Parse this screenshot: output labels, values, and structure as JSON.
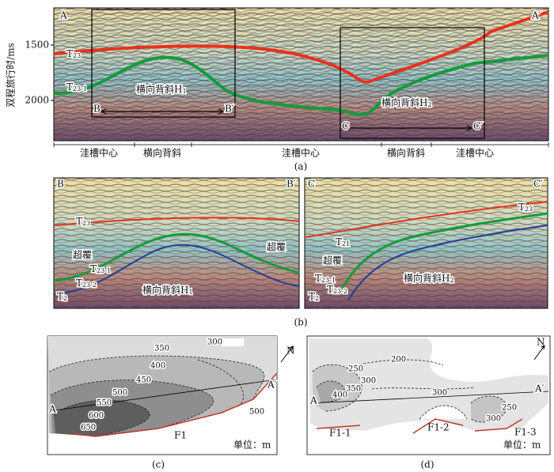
{
  "panel_a": {
    "y_axis_label": "双程旅行时/ms",
    "y_ticks": [
      "1500",
      "2000"
    ],
    "labels": {
      "A": "A",
      "A_prime": "A′",
      "B": "B",
      "B_prime": "B′",
      "C": "C",
      "C_prime": "C′"
    },
    "horizon_t23": {
      "main": "T",
      "sub": "23"
    },
    "horizon_t23_1": {
      "main": "T",
      "sub": "23-1"
    },
    "h1": {
      "main": "横向背斜H",
      "sub": "1"
    },
    "h2": {
      "main": "横向背斜H",
      "sub": "2"
    },
    "segments": [
      "洼槽中心",
      "横向背斜",
      "洼槽中心",
      "横向背斜",
      "洼槽中心"
    ],
    "caption": "(a)"
  },
  "panel_b": {
    "left": {
      "B": "B",
      "B_prime": "B′",
      "t23": {
        "main": "T",
        "sub": "23"
      },
      "onlap_left": "超覆",
      "onlap_right": "超覆",
      "t23_1": {
        "main": "T",
        "sub": "23-1"
      },
      "t23_2": {
        "main": "T",
        "sub": "23-2"
      },
      "t2": {
        "main": "T",
        "sub": "2"
      },
      "h1": {
        "main": "横向背斜H",
        "sub": "1"
      }
    },
    "right": {
      "C": "C",
      "C_prime": "C′",
      "t23": {
        "main": "T",
        "sub": "23"
      },
      "t21": {
        "main": "T",
        "sub": "21"
      },
      "onlap": "超覆",
      "t23_1": {
        "main": "T",
        "sub": "23-1"
      },
      "t23_2": {
        "main": "T",
        "sub": "23-2"
      },
      "t2": {
        "main": "T",
        "sub": "2"
      },
      "h2": {
        "main": "横向背斜H",
        "sub": "2"
      }
    },
    "caption": "(b)"
  },
  "panel_c": {
    "contours": [
      "350",
      "300",
      "400",
      "450",
      "500",
      "550",
      "600",
      "650",
      "500"
    ],
    "fault": "F1",
    "unit": "单位：m",
    "north": "N",
    "A": "A",
    "A_prime": "A′",
    "caption": "(c)"
  },
  "panel_d": {
    "contours": [
      "200",
      "250",
      "300",
      "350",
      "400",
      "300",
      "300",
      "250"
    ],
    "faults": [
      "F1-1",
      "F1-2",
      "F1-3"
    ],
    "unit": "单位：m",
    "north": "N",
    "A": "A",
    "A_prime": "A′",
    "caption": "(d)"
  }
}
